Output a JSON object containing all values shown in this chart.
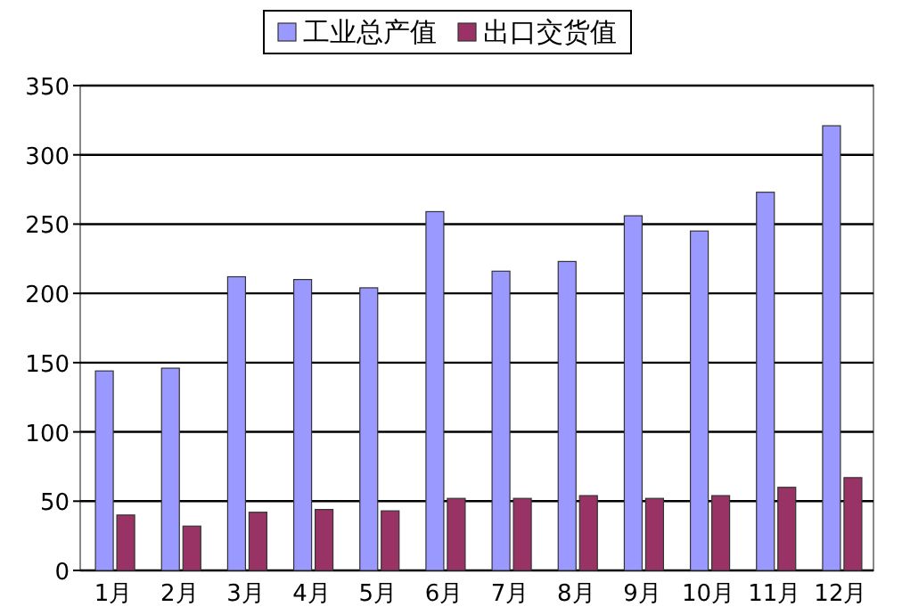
{
  "chart_data": {
    "type": "bar",
    "categories": [
      "1月",
      "2月",
      "3月",
      "4月",
      "5月",
      "6月",
      "7月",
      "8月",
      "9月",
      "10月",
      "11月",
      "12月"
    ],
    "series": [
      {
        "name": "工业总产值",
        "color": "#9999ff",
        "values": [
          144,
          146,
          212,
          210,
          204,
          259,
          216,
          223,
          256,
          245,
          273,
          321
        ]
      },
      {
        "name": "出口交货值",
        "color": "#993366",
        "values": [
          40,
          32,
          42,
          44,
          43,
          52,
          52,
          54,
          52,
          54,
          60,
          67
        ]
      }
    ],
    "ylim": [
      0,
      350
    ],
    "yticks": [
      0,
      50,
      100,
      150,
      200,
      250,
      300,
      350
    ],
    "grid": "y",
    "legend": "top"
  }
}
